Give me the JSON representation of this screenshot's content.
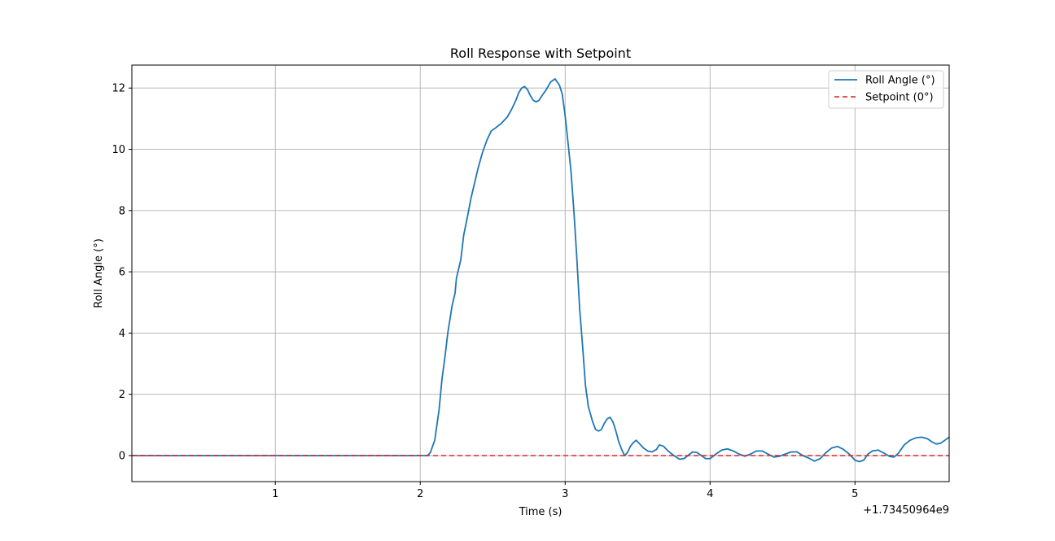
{
  "chart_data": {
    "type": "line",
    "title": "Roll Response with Setpoint",
    "xlabel": "Time (s)",
    "ylabel": "Roll Angle (°)",
    "x_offset_label": "+1.73450964e9",
    "xlim": [
      0.01,
      5.65
    ],
    "ylim": [
      -0.85,
      12.75
    ],
    "x_ticks": [
      1,
      2,
      3,
      4,
      5
    ],
    "x_tick_labels": [
      "1",
      "2",
      "3",
      "4",
      "5"
    ],
    "y_ticks": [
      0,
      2,
      4,
      6,
      8,
      10,
      12
    ],
    "y_tick_labels": [
      "0",
      "2",
      "4",
      "6",
      "8",
      "10",
      "12"
    ],
    "grid": true,
    "legend_position": "upper right",
    "series": [
      {
        "name": "Roll Angle (°)",
        "color": "#1f77b4",
        "style": "solid",
        "x": [
          0.01,
          2.05,
          2.07,
          2.1,
          2.13,
          2.15,
          2.17,
          2.19,
          2.2,
          2.22,
          2.24,
          2.25,
          2.28,
          2.3,
          2.33,
          2.35,
          2.38,
          2.4,
          2.43,
          2.46,
          2.49,
          2.52,
          2.56,
          2.6,
          2.63,
          2.66,
          2.68,
          2.7,
          2.72,
          2.74,
          2.76,
          2.78,
          2.8,
          2.82,
          2.84,
          2.87,
          2.9,
          2.93,
          2.96,
          2.98,
          3.0,
          3.02,
          3.04,
          3.06,
          3.08,
          3.1,
          3.12,
          3.14,
          3.16,
          3.19,
          3.21,
          3.23,
          3.25,
          3.27,
          3.29,
          3.31,
          3.33,
          3.35,
          3.37,
          3.39,
          3.41,
          3.43,
          3.45,
          3.47,
          3.49,
          3.51,
          3.54,
          3.57,
          3.6,
          3.63,
          3.65,
          3.68,
          3.71,
          3.75,
          3.79,
          3.82,
          3.86,
          3.88,
          3.91,
          3.94,
          3.97,
          4.0,
          4.04,
          4.08,
          4.12,
          4.16,
          4.2,
          4.24,
          4.28,
          4.32,
          4.36,
          4.4,
          4.44,
          4.48,
          4.52,
          4.56,
          4.6,
          4.64,
          4.68,
          4.72,
          4.76,
          4.8,
          4.84,
          4.88,
          4.92,
          4.96,
          5.0,
          5.03,
          5.06,
          5.09,
          5.12,
          5.16,
          5.2,
          5.24,
          5.27,
          5.3,
          5.34,
          5.38,
          5.42,
          5.46,
          5.5,
          5.53,
          5.56,
          5.59,
          5.62,
          5.65
        ],
        "y": [
          0.0,
          0.0,
          0.1,
          0.5,
          1.5,
          2.5,
          3.2,
          4.0,
          4.3,
          4.9,
          5.3,
          5.8,
          6.4,
          7.2,
          7.9,
          8.4,
          9.0,
          9.4,
          9.9,
          10.3,
          10.6,
          10.7,
          10.85,
          11.05,
          11.3,
          11.6,
          11.85,
          12.0,
          12.05,
          11.95,
          11.75,
          11.6,
          11.55,
          11.6,
          11.75,
          11.95,
          12.2,
          12.3,
          12.1,
          11.8,
          11.1,
          10.2,
          9.3,
          8.0,
          6.5,
          4.8,
          3.6,
          2.3,
          1.6,
          1.1,
          0.85,
          0.8,
          0.85,
          1.05,
          1.2,
          1.25,
          1.1,
          0.8,
          0.45,
          0.2,
          0.0,
          0.1,
          0.3,
          0.42,
          0.5,
          0.4,
          0.25,
          0.15,
          0.12,
          0.2,
          0.35,
          0.3,
          0.15,
          0.0,
          -0.12,
          -0.1,
          0.05,
          0.12,
          0.1,
          0.0,
          -0.1,
          -0.1,
          0.05,
          0.18,
          0.22,
          0.15,
          0.05,
          -0.02,
          0.05,
          0.15,
          0.15,
          0.05,
          -0.05,
          -0.02,
          0.05,
          0.12,
          0.12,
          0.0,
          -0.08,
          -0.18,
          -0.1,
          0.1,
          0.25,
          0.3,
          0.2,
          0.05,
          -0.15,
          -0.2,
          -0.15,
          0.05,
          0.15,
          0.18,
          0.08,
          -0.03,
          -0.05,
          0.08,
          0.35,
          0.5,
          0.58,
          0.6,
          0.55,
          0.45,
          0.38,
          0.4,
          0.5,
          0.6
        ]
      },
      {
        "name": "Setpoint (0°)",
        "color": "#d62728",
        "style": "dashed",
        "x": [
          0.01,
          5.65
        ],
        "y": [
          0,
          0
        ]
      }
    ]
  }
}
